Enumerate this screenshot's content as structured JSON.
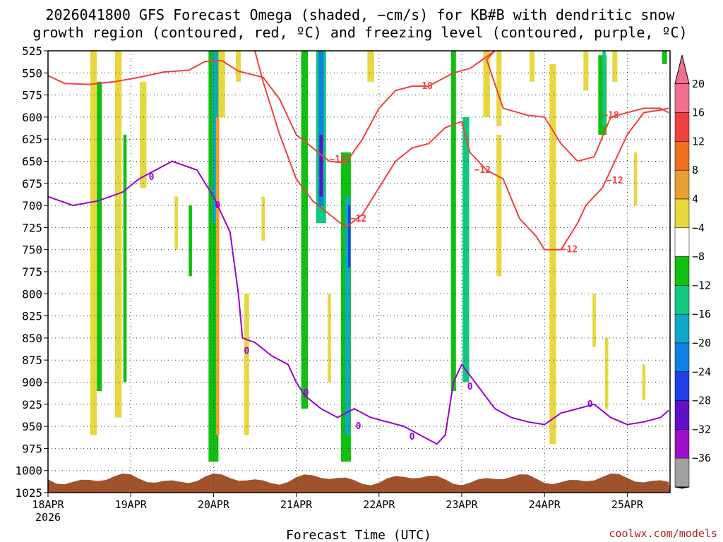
{
  "title_lines": [
    "2026041800 GFS Forecast Omega (shaded, −cm/s) for KB#B with dendritic snow",
    "growth region (contoured, red, ºC) and freezing level (contoured, purple, ºC)"
  ],
  "xlabel": "Forecast Time (UTC)",
  "credit": "coolwx.com/models",
  "colors": {
    "dgz_contour": "#f04040",
    "freezing_contour": "#9900cc",
    "terrain": "#a0522d",
    "grid": "#333333"
  },
  "chart_data": {
    "type": "heatmap",
    "y_ticks": [
      "525",
      "550",
      "575",
      "600",
      "625",
      "650",
      "675",
      "700",
      "725",
      "750",
      "775",
      "800",
      "825",
      "850",
      "875",
      "900",
      "925",
      "950",
      "975",
      "1000",
      "1025"
    ],
    "x_ticks": [
      {
        "label": "18APR",
        "day": 0
      },
      {
        "label": "19APR",
        "day": 1
      },
      {
        "label": "20APR",
        "day": 2
      },
      {
        "label": "21APR",
        "day": 3
      },
      {
        "label": "22APR",
        "day": 4
      },
      {
        "label": "23APR",
        "day": 5
      },
      {
        "label": "24APR",
        "day": 6
      },
      {
        "label": "25APR",
        "day": 7
      }
    ],
    "x_year": "2026",
    "colorbar": {
      "labels": [
        "20",
        "16",
        "12",
        "8",
        "4",
        "−4",
        "−8",
        "−12",
        "−16",
        "−20",
        "−24",
        "−28",
        "−32",
        "−36"
      ],
      "colors": [
        "#f07090",
        "#f04040",
        "#f07020",
        "#e8a030",
        "#e8d840",
        "#ffffff",
        "#10c010",
        "#10c880",
        "#10a8c8",
        "#1080e8",
        "#2040e8",
        "#6010c8",
        "#a010c8",
        "#a0a0a0"
      ]
    },
    "shaded_regions": [
      {
        "day": 0.55,
        "p_top": 525,
        "p_bot": 960,
        "hw": 0.04,
        "color": "#e8d840"
      },
      {
        "day": 0.62,
        "p_top": 560,
        "p_bot": 910,
        "hw": 0.03,
        "color": "#10c010"
      },
      {
        "day": 0.85,
        "p_top": 525,
        "p_bot": 940,
        "hw": 0.04,
        "color": "#e8d840"
      },
      {
        "day": 0.93,
        "p_top": 620,
        "p_bot": 900,
        "hw": 0.02,
        "color": "#10c010"
      },
      {
        "day": 1.15,
        "p_top": 560,
        "p_bot": 680,
        "hw": 0.04,
        "color": "#e8d840"
      },
      {
        "day": 1.55,
        "p_top": 690,
        "p_bot": 750,
        "hw": 0.02,
        "color": "#e8d840"
      },
      {
        "day": 1.72,
        "p_top": 700,
        "p_bot": 780,
        "hw": 0.02,
        "color": "#10c010"
      },
      {
        "day": 2.0,
        "p_top": 525,
        "p_bot": 990,
        "hw": 0.06,
        "color": "#10c010"
      },
      {
        "day": 2.02,
        "p_top": 525,
        "p_bot": 720,
        "hw": 0.03,
        "color": "#10a8c8"
      },
      {
        "day": 2.05,
        "p_top": 600,
        "p_bot": 960,
        "hw": 0.02,
        "color": "#e8a030"
      },
      {
        "day": 2.1,
        "p_top": 525,
        "p_bot": 600,
        "hw": 0.04,
        "color": "#e8d840"
      },
      {
        "day": 2.3,
        "p_top": 525,
        "p_bot": 560,
        "hw": 0.03,
        "color": "#e8d840"
      },
      {
        "day": 2.4,
        "p_top": 800,
        "p_bot": 960,
        "hw": 0.03,
        "color": "#e8d840"
      },
      {
        "day": 2.6,
        "p_top": 690,
        "p_bot": 740,
        "hw": 0.02,
        "color": "#e8d840"
      },
      {
        "day": 3.1,
        "p_top": 525,
        "p_bot": 930,
        "hw": 0.04,
        "color": "#10c010"
      },
      {
        "day": 3.3,
        "p_top": 525,
        "p_bot": 720,
        "hw": 0.06,
        "color": "#10c880"
      },
      {
        "day": 3.3,
        "p_top": 525,
        "p_bot": 700,
        "hw": 0.03,
        "color": "#1080e8"
      },
      {
        "day": 3.3,
        "p_top": 620,
        "p_bot": 690,
        "hw": 0.02,
        "color": "#6010c8"
      },
      {
        "day": 3.6,
        "p_top": 640,
        "p_bot": 990,
        "hw": 0.06,
        "color": "#10c010"
      },
      {
        "day": 3.62,
        "p_top": 690,
        "p_bot": 960,
        "hw": 0.03,
        "color": "#10a8c8"
      },
      {
        "day": 3.64,
        "p_top": 700,
        "p_bot": 770,
        "hw": 0.015,
        "color": "#2040e8"
      },
      {
        "day": 3.9,
        "p_top": 525,
        "p_bot": 560,
        "hw": 0.04,
        "color": "#e8d840"
      },
      {
        "day": 3.4,
        "p_top": 800,
        "p_bot": 900,
        "hw": 0.02,
        "color": "#e8d840"
      },
      {
        "day": 4.9,
        "p_top": 525,
        "p_bot": 910,
        "hw": 0.03,
        "color": "#10c010"
      },
      {
        "day": 5.05,
        "p_top": 600,
        "p_bot": 900,
        "hw": 0.04,
        "color": "#10c880"
      },
      {
        "day": 5.3,
        "p_top": 525,
        "p_bot": 600,
        "hw": 0.04,
        "color": "#e8d840"
      },
      {
        "day": 5.45,
        "p_top": 525,
        "p_bot": 610,
        "hw": 0.03,
        "color": "#e8d840"
      },
      {
        "day": 5.45,
        "p_top": 620,
        "p_bot": 780,
        "hw": 0.03,
        "color": "#e8d840"
      },
      {
        "day": 5.85,
        "p_top": 525,
        "p_bot": 560,
        "hw": 0.03,
        "color": "#e8d840"
      },
      {
        "day": 6.1,
        "p_top": 540,
        "p_bot": 970,
        "hw": 0.04,
        "color": "#e8d840"
      },
      {
        "day": 6.5,
        "p_top": 525,
        "p_bot": 570,
        "hw": 0.03,
        "color": "#e8d840"
      },
      {
        "day": 6.7,
        "p_top": 530,
        "p_bot": 620,
        "hw": 0.05,
        "color": "#10c010"
      },
      {
        "day": 6.72,
        "p_top": 525,
        "p_bot": 610,
        "hw": 0.02,
        "color": "#10c880"
      },
      {
        "day": 6.85,
        "p_top": 525,
        "p_bot": 560,
        "hw": 0.03,
        "color": "#e8d840"
      },
      {
        "day": 6.6,
        "p_top": 800,
        "p_bot": 860,
        "hw": 0.02,
        "color": "#e8d840"
      },
      {
        "day": 6.75,
        "p_top": 850,
        "p_bot": 930,
        "hw": 0.02,
        "color": "#e8d840"
      },
      {
        "day": 7.1,
        "p_top": 640,
        "p_bot": 700,
        "hw": 0.02,
        "color": "#e8d840"
      },
      {
        "day": 7.2,
        "p_top": 880,
        "p_bot": 920,
        "hw": 0.02,
        "color": "#e8d840"
      },
      {
        "day": 7.45,
        "p_top": 525,
        "p_bot": 540,
        "hw": 0.03,
        "color": "#10c010"
      }
    ],
    "dgz_contours": [
      {
        "label": "−18",
        "points": [
          [
            0,
            553
          ],
          [
            0.2,
            562
          ],
          [
            0.5,
            563
          ],
          [
            0.8,
            560
          ],
          [
            1.1,
            555
          ],
          [
            1.4,
            549
          ],
          [
            1.7,
            547
          ],
          [
            1.9,
            537
          ],
          [
            2.1,
            536
          ],
          [
            2.3,
            548
          ],
          [
            2.6,
            555
          ],
          [
            2.8,
            580
          ],
          [
            3.0,
            620
          ],
          [
            3.2,
            635
          ],
          [
            3.4,
            650
          ],
          [
            3.6,
            652
          ],
          [
            3.8,
            625
          ],
          [
            4.0,
            590
          ],
          [
            4.2,
            570
          ],
          [
            4.4,
            565
          ],
          [
            4.6,
            565
          ],
          [
            4.9,
            550
          ],
          [
            5.1,
            545
          ],
          [
            5.4,
            525
          ],
          [
            5.3,
            535
          ],
          [
            5.5,
            590
          ],
          [
            5.8,
            598
          ],
          [
            6.0,
            600
          ],
          [
            6.2,
            630
          ],
          [
            6.4,
            650
          ],
          [
            6.6,
            645
          ],
          [
            6.8,
            600
          ],
          [
            7.0,
            595
          ],
          [
            7.2,
            590
          ],
          [
            7.4,
            590
          ],
          [
            7.5,
            595
          ]
        ],
        "labels": [
          [
            3.5,
            648
          ],
          [
            4.55,
            565
          ],
          [
            6.8,
            598
          ]
        ]
      },
      {
        "label": "−12",
        "points": [
          [
            2.5,
            525
          ],
          [
            2.6,
            560
          ],
          [
            2.8,
            620
          ],
          [
            3.0,
            670
          ],
          [
            3.2,
            695
          ],
          [
            3.4,
            710
          ],
          [
            3.6,
            725
          ],
          [
            3.8,
            710
          ],
          [
            4.0,
            680
          ],
          [
            4.2,
            650
          ],
          [
            4.4,
            635
          ],
          [
            4.6,
            630
          ],
          [
            4.8,
            612
          ],
          [
            5.0,
            605
          ],
          [
            5.1,
            640
          ],
          [
            5.3,
            660
          ],
          [
            5.5,
            670
          ],
          [
            5.7,
            715
          ],
          [
            5.9,
            735
          ],
          [
            6.0,
            750
          ],
          [
            6.2,
            750
          ],
          [
            6.4,
            720
          ],
          [
            6.5,
            700
          ],
          [
            6.6,
            690
          ],
          [
            6.7,
            680
          ],
          [
            6.8,
            660
          ],
          [
            7.0,
            620
          ],
          [
            7.2,
            595
          ],
          [
            7.4,
            592
          ],
          [
            7.5,
            590
          ]
        ],
        "labels": [
          [
            3.75,
            715
          ],
          [
            5.25,
            660
          ],
          [
            6.3,
            750
          ],
          [
            6.85,
            672
          ]
        ]
      }
    ],
    "freezing_contour": {
      "label": "0",
      "points": [
        [
          0,
          690
        ],
        [
          0.3,
          700
        ],
        [
          0.6,
          695
        ],
        [
          0.9,
          685
        ],
        [
          1.1,
          670
        ],
        [
          1.3,
          660
        ],
        [
          1.5,
          650
        ],
        [
          1.8,
          660
        ],
        [
          2.0,
          690
        ],
        [
          2.2,
          730
        ],
        [
          2.3,
          800
        ],
        [
          2.35,
          850
        ],
        [
          2.5,
          855
        ],
        [
          2.7,
          870
        ],
        [
          2.9,
          880
        ],
        [
          3.0,
          900
        ],
        [
          3.1,
          915
        ],
        [
          3.3,
          930
        ],
        [
          3.5,
          940
        ],
        [
          3.7,
          930
        ],
        [
          3.9,
          940
        ],
        [
          4.1,
          945
        ],
        [
          4.3,
          950
        ],
        [
          4.5,
          960
        ],
        [
          4.7,
          970
        ],
        [
          4.8,
          960
        ],
        [
          4.9,
          900
        ],
        [
          5.0,
          880
        ],
        [
          5.2,
          905
        ],
        [
          5.4,
          930
        ],
        [
          5.6,
          940
        ],
        [
          5.8,
          945
        ],
        [
          6.0,
          948
        ],
        [
          6.2,
          935
        ],
        [
          6.4,
          930
        ],
        [
          6.6,
          925
        ],
        [
          6.8,
          940
        ],
        [
          7.0,
          948
        ],
        [
          7.2,
          945
        ],
        [
          7.4,
          940
        ],
        [
          7.5,
          932
        ]
      ],
      "labels": [
        [
          1.25,
          668
        ],
        [
          2.05,
          700
        ],
        [
          2.4,
          865
        ],
        [
          3.12,
          912
        ],
        [
          3.75,
          950
        ],
        [
          4.4,
          962
        ],
        [
          5.1,
          905
        ],
        [
          6.55,
          925
        ]
      ]
    },
    "ylim": [
      525,
      1025
    ],
    "xlim_days": [
      0,
      7.5
    ]
  }
}
